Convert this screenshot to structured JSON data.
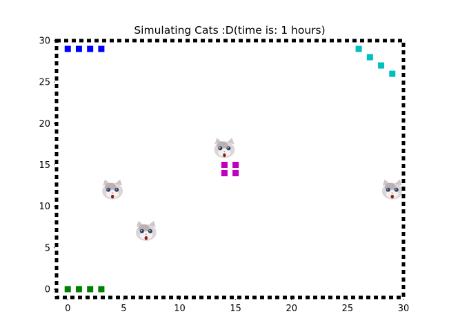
{
  "chart_data": {
    "type": "scatter",
    "title": "Simulating Cats :D(time is: 1 hours)",
    "xlabel": "",
    "ylabel": "",
    "xlim": [
      -1,
      30
    ],
    "ylim": [
      -1,
      30
    ],
    "xticks": [
      0,
      5,
      10,
      15,
      20,
      25,
      30
    ],
    "yticks": [
      0,
      5,
      10,
      15,
      20,
      25,
      30
    ],
    "grid": false,
    "border_style": "black-white dashed",
    "series": [
      {
        "color": "#0000ff",
        "marker": "square",
        "points": [
          [
            0,
            29
          ],
          [
            1,
            29
          ],
          [
            2,
            29
          ],
          [
            3,
            29
          ]
        ]
      },
      {
        "color": "#00bfbf",
        "marker": "square",
        "points": [
          [
            26,
            29
          ],
          [
            27,
            28
          ],
          [
            28,
            27
          ],
          [
            29,
            26
          ]
        ]
      },
      {
        "color": "#bf00bf",
        "marker": "square",
        "points": [
          [
            14,
            15
          ],
          [
            15,
            15
          ],
          [
            14,
            14
          ],
          [
            15,
            14
          ]
        ]
      },
      {
        "color": "#008000",
        "marker": "square",
        "points": [
          [
            0,
            0
          ],
          [
            1,
            0
          ],
          [
            2,
            0
          ],
          [
            3,
            0
          ]
        ]
      }
    ],
    "cats": {
      "icon": "cat-face-icon",
      "points": [
        [
          14,
          17
        ],
        [
          4,
          12
        ],
        [
          29,
          12
        ],
        [
          7,
          7
        ]
      ]
    }
  }
}
